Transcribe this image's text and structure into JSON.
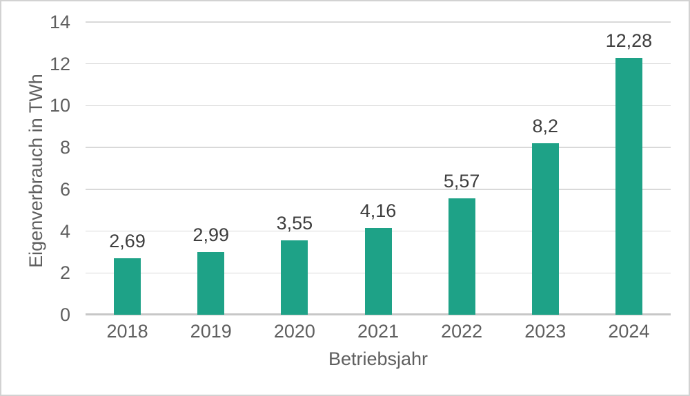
{
  "chart_data": {
    "type": "bar",
    "title": "",
    "categories": [
      "2018",
      "2019",
      "2020",
      "2021",
      "2022",
      "2023",
      "2024"
    ],
    "values": [
      2.69,
      2.99,
      3.55,
      4.16,
      5.57,
      8.2,
      12.28
    ],
    "value_labels": [
      "2,69",
      "2,99",
      "3,55",
      "4,16",
      "5,57",
      "8,2",
      "12,28"
    ],
    "xlabel": "Betriebsjahr",
    "ylabel": "Eigenverbrauch in TWh",
    "ylim": [
      0,
      14
    ],
    "ytick_step": 2,
    "yticks": [
      "0",
      "2",
      "4",
      "6",
      "8",
      "10",
      "12",
      "14"
    ],
    "grid": true,
    "legend": "none",
    "bar_color": "#1EA287"
  },
  "colors": {
    "bar": "#1EA287",
    "gridline": "#d9d9d9",
    "axis_line": "#c7c7c7",
    "tick_text": "#5f5f5f",
    "data_label_text": "#3d3d3d",
    "frame_border": "#d2d2d2",
    "background": "#ffffff"
  }
}
